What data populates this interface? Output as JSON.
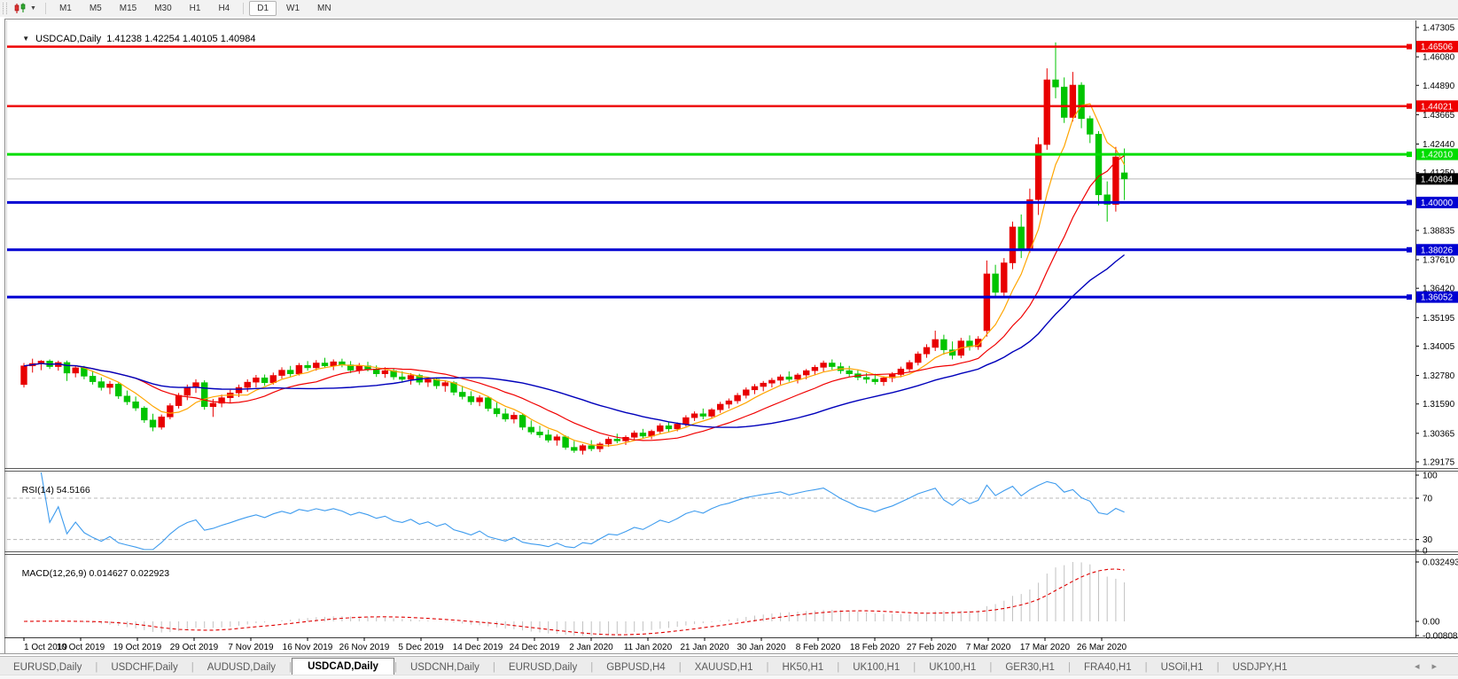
{
  "toolbar": {
    "timeframes": [
      {
        "label": "M1",
        "active": false
      },
      {
        "label": "M5",
        "active": false
      },
      {
        "label": "M15",
        "active": false
      },
      {
        "label": "M30",
        "active": false
      },
      {
        "label": "H1",
        "active": false
      },
      {
        "label": "H4",
        "active": false
      },
      {
        "label": "D1",
        "active": true
      },
      {
        "label": "W1",
        "active": false
      },
      {
        "label": "MN",
        "active": false
      }
    ],
    "dropdown_glyph": "▼"
  },
  "chart_window": {
    "menu_icon_glyph": "▼",
    "symbol": "USDCAD,Daily",
    "ohlc": {
      "open": "1.41238",
      "high": "1.42254",
      "low": "1.40105",
      "close": "1.40984"
    }
  },
  "chart_data": {
    "type": "candlestick",
    "symbol": "USDCAD",
    "timeframe": "Daily",
    "title": "USDCAD,Daily  1.41238 1.42254 1.40105 1.40984",
    "price_axis_ticks": [
      1.47305,
      1.4608,
      1.4489,
      1.43665,
      1.4244,
      1.4125,
      1.38835,
      1.3761,
      1.3642,
      1.35195,
      1.34005,
      1.3278,
      1.3159,
      1.30365,
      1.29175
    ],
    "price_range": [
      1.289,
      1.4775
    ],
    "horizontal_lines": [
      {
        "value": 1.46506,
        "color": "#ee0000",
        "width": 2.5
      },
      {
        "value": 1.44021,
        "color": "#ee0000",
        "width": 2.5
      },
      {
        "value": 1.4201,
        "color": "#00dd00",
        "width": 3
      },
      {
        "value": 1.4,
        "color": "#0000d2",
        "width": 3
      },
      {
        "value": 1.38026,
        "color": "#0000d2",
        "width": 3
      },
      {
        "value": 1.36052,
        "color": "#0000d2",
        "width": 3
      }
    ],
    "current_price": {
      "value": 1.40984,
      "label": "1.40984",
      "badge_color": "#000000",
      "line_color": "#b6b6b6"
    },
    "candle_colors": {
      "bull": "#e80000",
      "bear": "#00c400"
    },
    "moving_averages": [
      {
        "period": 6,
        "color": "#ffa500"
      },
      {
        "period": 14,
        "color": "#f00000"
      },
      {
        "period": 30,
        "color": "#0000bb"
      }
    ],
    "x_axis_labels": [
      "1 Oct 2019",
      "10 Oct 2019",
      "19 Oct 2019",
      "29 Oct 2019",
      "7 Nov 2019",
      "16 Nov 2019",
      "26 Nov 2019",
      "5 Dec 2019",
      "14 Dec 2019",
      "24 Dec 2019",
      "2 Jan 2020",
      "11 Jan 2020",
      "21 Jan 2020",
      "30 Jan 2020",
      "8 Feb 2020",
      "18 Feb 2020",
      "27 Feb 2020",
      "7 Mar 2020",
      "17 Mar 2020",
      "26 Mar 2020"
    ],
    "rsi": {
      "label": "RSI(14)",
      "value_text": "54.5166",
      "period": 14,
      "levels": [
        70,
        30
      ],
      "scale_ticks": [
        100,
        70,
        30,
        0
      ],
      "line_color": "#3d9bee"
    },
    "macd": {
      "label": "MACD(12,26,9)",
      "value_main": "0.014627",
      "value_signal": "0.022923",
      "fast": 12,
      "slow": 26,
      "signal": 9,
      "scale_ticks": [
        {
          "label": "0.032493",
          "value": 0.032493
        },
        {
          "label": "0.00",
          "value": 0
        },
        {
          "label": "-0.008086",
          "value": -0.008086
        }
      ],
      "histogram_color": "#c2c2c2",
      "signal_color": "#e00000"
    },
    "candles": [
      [
        1.324,
        1.333,
        1.3228,
        1.3318
      ],
      [
        1.3318,
        1.3348,
        1.329,
        1.3328
      ],
      [
        1.3328,
        1.3342,
        1.33,
        1.3338
      ],
      [
        1.3338,
        1.3345,
        1.3305,
        1.3315
      ],
      [
        1.3315,
        1.334,
        1.3298,
        1.3332
      ],
      [
        1.3332,
        1.334,
        1.3255,
        1.3288
      ],
      [
        1.3288,
        1.332,
        1.327,
        1.331
      ],
      [
        1.331,
        1.3318,
        1.3262,
        1.3275
      ],
      [
        1.3275,
        1.3298,
        1.324,
        1.3252
      ],
      [
        1.3252,
        1.327,
        1.3215,
        1.3228
      ],
      [
        1.3228,
        1.3255,
        1.32,
        1.3242
      ],
      [
        1.3242,
        1.325,
        1.318,
        1.3192
      ],
      [
        1.3192,
        1.3215,
        1.3155,
        1.3168
      ],
      [
        1.3168,
        1.319,
        1.313,
        1.3142
      ],
      [
        1.3142,
        1.315,
        1.308,
        1.3092
      ],
      [
        1.3092,
        1.3118,
        1.3045,
        1.3062
      ],
      [
        1.3062,
        1.3115,
        1.3052,
        1.3105
      ],
      [
        1.3105,
        1.3162,
        1.3095,
        1.3152
      ],
      [
        1.3152,
        1.3205,
        1.314,
        1.3195
      ],
      [
        1.3195,
        1.324,
        1.3175,
        1.3228
      ],
      [
        1.3228,
        1.3262,
        1.3205,
        1.3248
      ],
      [
        1.3248,
        1.3258,
        1.3135,
        1.3148
      ],
      [
        1.3148,
        1.318,
        1.3105,
        1.3162
      ],
      [
        1.3162,
        1.3198,
        1.3145,
        1.3185
      ],
      [
        1.3185,
        1.3218,
        1.3162,
        1.3205
      ],
      [
        1.3205,
        1.324,
        1.3188,
        1.3228
      ],
      [
        1.3228,
        1.3262,
        1.321,
        1.325
      ],
      [
        1.325,
        1.328,
        1.3228,
        1.3268
      ],
      [
        1.3268,
        1.3282,
        1.3235,
        1.3248
      ],
      [
        1.3248,
        1.329,
        1.324,
        1.3278
      ],
      [
        1.3278,
        1.3312,
        1.3265,
        1.33
      ],
      [
        1.33,
        1.3318,
        1.3272,
        1.3285
      ],
      [
        1.3285,
        1.333,
        1.3278,
        1.332
      ],
      [
        1.332,
        1.3338,
        1.3298,
        1.331
      ],
      [
        1.331,
        1.3342,
        1.3298,
        1.333
      ],
      [
        1.333,
        1.3352,
        1.331,
        1.3318
      ],
      [
        1.3318,
        1.3345,
        1.33,
        1.3335
      ],
      [
        1.3335,
        1.3348,
        1.3312,
        1.3322
      ],
      [
        1.3322,
        1.3338,
        1.3288,
        1.33
      ],
      [
        1.33,
        1.333,
        1.3285,
        1.3318
      ],
      [
        1.3318,
        1.3335,
        1.3295,
        1.3305
      ],
      [
        1.3305,
        1.332,
        1.3272,
        1.3285
      ],
      [
        1.3285,
        1.3312,
        1.3268,
        1.3298
      ],
      [
        1.3298,
        1.3308,
        1.326,
        1.3272
      ],
      [
        1.3272,
        1.3295,
        1.3248,
        1.3262
      ],
      [
        1.3262,
        1.3288,
        1.324,
        1.3278
      ],
      [
        1.3278,
        1.3285,
        1.3238,
        1.325
      ],
      [
        1.325,
        1.3272,
        1.323,
        1.3262
      ],
      [
        1.3262,
        1.327,
        1.3222,
        1.3235
      ],
      [
        1.3235,
        1.3258,
        1.321,
        1.3248
      ],
      [
        1.3248,
        1.3255,
        1.3195,
        1.3208
      ],
      [
        1.3208,
        1.3235,
        1.3178,
        1.319
      ],
      [
        1.319,
        1.3212,
        1.3155,
        1.3168
      ],
      [
        1.3168,
        1.3195,
        1.315,
        1.3185
      ],
      [
        1.3185,
        1.3192,
        1.3128,
        1.314
      ],
      [
        1.314,
        1.3165,
        1.3105,
        1.3118
      ],
      [
        1.3118,
        1.314,
        1.3085,
        1.3096
      ],
      [
        1.3096,
        1.3125,
        1.3078,
        1.3112
      ],
      [
        1.3112,
        1.3118,
        1.305,
        1.3062
      ],
      [
        1.3062,
        1.309,
        1.3032,
        1.3042
      ],
      [
        1.3042,
        1.3068,
        1.3018,
        1.303
      ],
      [
        1.303,
        1.3052,
        1.2998,
        1.3008
      ],
      [
        1.3008,
        1.3032,
        1.2985,
        1.3022
      ],
      [
        1.3022,
        1.3028,
        1.2968,
        1.2978
      ],
      [
        1.2978,
        1.3005,
        1.2955,
        1.2965
      ],
      [
        1.2965,
        1.2992,
        1.2948,
        1.2985
      ],
      [
        1.2985,
        1.3008,
        1.2962,
        1.2972
      ],
      [
        1.2972,
        1.3,
        1.2958,
        1.2992
      ],
      [
        1.2992,
        1.3022,
        1.298,
        1.3012
      ],
      [
        1.3012,
        1.3035,
        1.2995,
        1.3005
      ],
      [
        1.3005,
        1.3028,
        1.2988,
        1.302
      ],
      [
        1.302,
        1.3048,
        1.3008,
        1.3038
      ],
      [
        1.3038,
        1.3055,
        1.3015,
        1.3025
      ],
      [
        1.3025,
        1.3052,
        1.3012,
        1.3045
      ],
      [
        1.3045,
        1.3078,
        1.3035,
        1.3068
      ],
      [
        1.3068,
        1.3085,
        1.3042,
        1.3055
      ],
      [
        1.3055,
        1.3082,
        1.3045,
        1.3075
      ],
      [
        1.3075,
        1.3112,
        1.3065,
        1.3102
      ],
      [
        1.3102,
        1.3128,
        1.3088,
        1.3118
      ],
      [
        1.3118,
        1.314,
        1.3095,
        1.3108
      ],
      [
        1.3108,
        1.3142,
        1.31,
        1.3135
      ],
      [
        1.3135,
        1.3168,
        1.3122,
        1.3158
      ],
      [
        1.3158,
        1.3182,
        1.314,
        1.3172
      ],
      [
        1.3172,
        1.3205,
        1.316,
        1.3195
      ],
      [
        1.3195,
        1.3228,
        1.3182,
        1.3218
      ],
      [
        1.3218,
        1.3242,
        1.32,
        1.3232
      ],
      [
        1.3232,
        1.3255,
        1.3212,
        1.3246
      ],
      [
        1.3246,
        1.3268,
        1.3228,
        1.3258
      ],
      [
        1.3258,
        1.3282,
        1.324,
        1.3272
      ],
      [
        1.3272,
        1.3295,
        1.3252,
        1.3262
      ],
      [
        1.3262,
        1.3288,
        1.3245,
        1.328
      ],
      [
        1.328,
        1.3305,
        1.3262,
        1.3298
      ],
      [
        1.3298,
        1.3322,
        1.328,
        1.3312
      ],
      [
        1.3312,
        1.334,
        1.3295,
        1.333
      ],
      [
        1.333,
        1.3345,
        1.3302,
        1.3315
      ],
      [
        1.3315,
        1.3332,
        1.3285,
        1.3298
      ],
      [
        1.3298,
        1.3318,
        1.3272,
        1.3285
      ],
      [
        1.3285,
        1.3302,
        1.3258,
        1.327
      ],
      [
        1.327,
        1.3288,
        1.3245,
        1.3262
      ],
      [
        1.3262,
        1.3285,
        1.324,
        1.3252
      ],
      [
        1.3252,
        1.3275,
        1.3235,
        1.3268
      ],
      [
        1.3268,
        1.3292,
        1.325,
        1.3282
      ],
      [
        1.3282,
        1.3315,
        1.327,
        1.3305
      ],
      [
        1.3305,
        1.3342,
        1.3292,
        1.3332
      ],
      [
        1.3332,
        1.3378,
        1.332,
        1.3368
      ],
      [
        1.3368,
        1.3408,
        1.3352,
        1.3395
      ],
      [
        1.3395,
        1.3465,
        1.338,
        1.3428
      ],
      [
        1.3428,
        1.3448,
        1.3365,
        1.3385
      ],
      [
        1.3385,
        1.342,
        1.3345,
        1.3362
      ],
      [
        1.3362,
        1.3435,
        1.335,
        1.3422
      ],
      [
        1.3422,
        1.3445,
        1.3382,
        1.3398
      ],
      [
        1.3398,
        1.3442,
        1.3385,
        1.343
      ],
      [
        1.3465,
        1.3758,
        1.344,
        1.3702
      ],
      [
        1.3702,
        1.374,
        1.36,
        1.3625
      ],
      [
        1.3625,
        1.3768,
        1.361,
        1.3748
      ],
      [
        1.3748,
        1.392,
        1.3722,
        1.3898
      ],
      [
        1.3898,
        1.395,
        1.3768,
        1.3802
      ],
      [
        1.3802,
        1.4058,
        1.379,
        1.4012
      ],
      [
        1.4012,
        1.4272,
        1.3948,
        1.4242
      ],
      [
        1.4242,
        1.456,
        1.422,
        1.4512
      ],
      [
        1.4512,
        1.4668,
        1.4435,
        1.4482
      ],
      [
        1.4482,
        1.4522,
        1.4332,
        1.4355
      ],
      [
        1.4355,
        1.4545,
        1.4338,
        1.449
      ],
      [
        1.449,
        1.4502,
        1.431,
        1.435
      ],
      [
        1.435,
        1.4362,
        1.4248,
        1.4285
      ],
      [
        1.4285,
        1.4298,
        1.3988,
        1.4032
      ],
      [
        1.4032,
        1.4088,
        1.392,
        1.3992
      ],
      [
        1.3992,
        1.4232,
        1.3962,
        1.419
      ],
      [
        1.41238,
        1.42254,
        1.40105,
        1.40984
      ]
    ]
  },
  "tabs": {
    "items": [
      {
        "label": "EURUSD,Daily",
        "active": false
      },
      {
        "label": "USDCHF,Daily",
        "active": false
      },
      {
        "label": "AUDUSD,Daily",
        "active": false
      },
      {
        "label": "USDCAD,Daily",
        "active": true
      },
      {
        "label": "USDCNH,Daily",
        "active": false
      },
      {
        "label": "EURUSD,Daily",
        "active": false
      },
      {
        "label": "GBPUSD,H4",
        "active": false
      },
      {
        "label": "XAUUSD,H1",
        "active": false
      },
      {
        "label": "HK50,H1",
        "active": false
      },
      {
        "label": "UK100,H1",
        "active": false
      },
      {
        "label": "UK100,H1",
        "active": false
      },
      {
        "label": "GER30,H1",
        "active": false
      },
      {
        "label": "FRA40,H1",
        "active": false
      },
      {
        "label": "USOil,H1",
        "active": false
      },
      {
        "label": "USDJPY,H1",
        "active": false
      }
    ],
    "scroll_left_glyph": "◂",
    "scroll_right_glyph": "▸"
  }
}
